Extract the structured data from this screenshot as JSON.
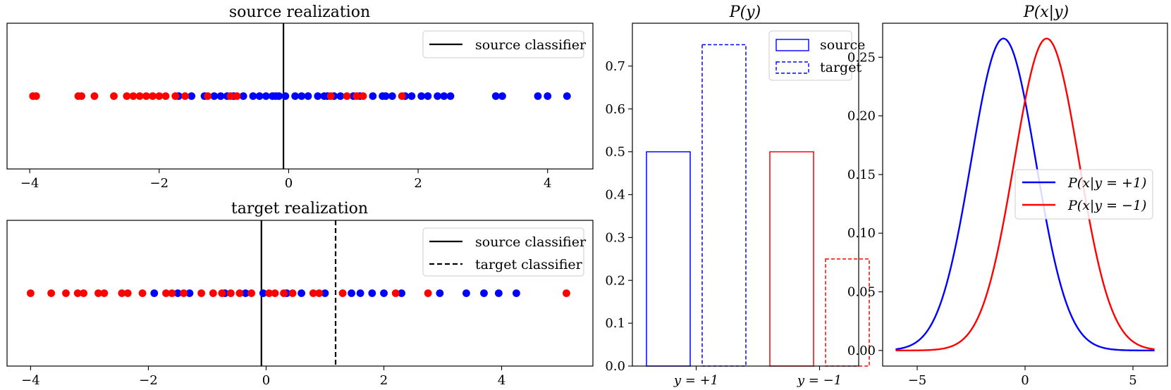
{
  "chart_data": [
    {
      "id": "source",
      "type": "scatter",
      "title": "source realization",
      "xlim": [
        -4.35,
        4.7
      ],
      "xticks": [
        -4,
        -2,
        0,
        2,
        4
      ],
      "xtick_labels": [
        "−4",
        "−2",
        "0",
        "2",
        "4"
      ],
      "legend": {
        "placement": "top-right",
        "entries": [
          {
            "label": "source classifier",
            "style": "solid"
          }
        ]
      },
      "classifiers": [
        {
          "name": "source classifier",
          "x": -0.08,
          "style": "solid"
        }
      ],
      "series": [
        {
          "name": "y = +1",
          "color": "#0000ff",
          "x": [
            -1.7,
            -1.5,
            -1.3,
            -1.15,
            -1.05,
            -0.95,
            -0.85,
            -0.7,
            -0.55,
            -0.45,
            -0.35,
            -0.25,
            -0.2,
            -0.15,
            -0.05,
            0.1,
            0.2,
            0.3,
            0.45,
            0.55,
            0.6,
            0.7,
            0.8,
            1.0,
            1.1,
            1.3,
            1.45,
            1.5,
            1.6,
            1.8,
            1.9,
            2.05,
            2.15,
            2.3,
            2.4,
            2.5,
            3.2,
            3.3,
            3.85,
            4.0,
            4.3
          ]
        },
        {
          "name": "y = −1",
          "color": "#ff0000",
          "x": [
            -3.95,
            -3.9,
            -3.25,
            -3.2,
            -3.0,
            -2.7,
            -2.5,
            -2.4,
            -2.3,
            -2.2,
            -2.1,
            -2.0,
            -1.9,
            -1.75,
            -1.6,
            -1.25,
            -0.9,
            -0.8,
            0.65,
            0.9,
            1.05,
            1.15,
            1.75
          ]
        }
      ]
    },
    {
      "id": "target",
      "type": "scatter",
      "title": "target realization",
      "xlim": [
        -4.4,
        5.55
      ],
      "xticks": [
        -4,
        -2,
        0,
        2,
        4
      ],
      "xtick_labels": [
        "−4",
        "−2",
        "0",
        "2",
        "4"
      ],
      "legend": {
        "placement": "top-right",
        "entries": [
          {
            "label": "source classifier",
            "style": "solid"
          },
          {
            "label": "target classifier",
            "style": "dashed"
          }
        ]
      },
      "classifiers": [
        {
          "name": "source classifier",
          "x": -0.08,
          "style": "solid"
        },
        {
          "name": "target classifier",
          "x": 1.18,
          "style": "dashed"
        }
      ],
      "series": [
        {
          "name": "y = +1",
          "color": "#0000ff",
          "x": [
            -1.9,
            -1.5,
            -1.3,
            -0.7,
            -0.35,
            -0.05,
            0.35,
            0.6,
            1.0,
            1.45,
            1.6,
            1.8,
            2.0,
            2.3,
            2.95,
            3.4,
            3.7,
            3.95,
            4.25
          ]
        },
        {
          "name": "y = −1",
          "color": "#ff0000",
          "x": [
            -4.0,
            -3.65,
            -3.4,
            -3.2,
            -3.1,
            -2.85,
            -2.75,
            -2.45,
            -2.35,
            -2.1,
            -1.7,
            -1.6,
            -1.4,
            -1.1,
            -0.9,
            -0.75,
            -0.6,
            -0.45,
            -0.25,
            0.05,
            0.15,
            0.3,
            0.45,
            0.8,
            0.9,
            1.3,
            2.2,
            2.75,
            5.1
          ]
        }
      ]
    },
    {
      "id": "prior",
      "type": "bar",
      "title": "P(y)",
      "categories": [
        "y = +1",
        "y = −1"
      ],
      "ylim": [
        0,
        0.8
      ],
      "yticks": [
        0.0,
        0.1,
        0.2,
        0.3,
        0.4,
        0.5,
        0.6,
        0.7
      ],
      "ytick_labels": [
        "0.0",
        "0.1",
        "0.2",
        "0.3",
        "0.4",
        "0.5",
        "0.6",
        "0.7"
      ],
      "legend": {
        "placement": "top-right",
        "entries": [
          {
            "label": "source",
            "style": "solid"
          },
          {
            "label": "target",
            "style": "dashed"
          }
        ]
      },
      "series": [
        {
          "name": "source",
          "style": "solid",
          "values": [
            0.5,
            0.5
          ]
        },
        {
          "name": "target",
          "style": "dashed",
          "values": [
            0.75,
            0.25
          ]
        }
      ],
      "colors": [
        "#0000ff",
        "#ff0000"
      ]
    },
    {
      "id": "likelihood",
      "type": "line",
      "title": "P(x|y)",
      "xlim": [
        -6.6,
        6.6
      ],
      "ylim": [
        -0.0133,
        0.279
      ],
      "xticks": [
        -5,
        0,
        5
      ],
      "xtick_labels": [
        "−5",
        "0",
        "5"
      ],
      "yticks": [
        0.0,
        0.05,
        0.1,
        0.15,
        0.2,
        0.25
      ],
      "ytick_labels": [
        "0.00",
        "0.05",
        "0.10",
        "0.15",
        "0.20",
        "0.25"
      ],
      "legend": {
        "placement": "center-right",
        "entries": [
          {
            "label": "P(x|y = +1)",
            "color": "#0000ff"
          },
          {
            "label": "P(x|y = −1)",
            "color": "#ff0000"
          }
        ]
      },
      "series": [
        {
          "name": "P(x|y = +1)",
          "color": "#0000ff",
          "distribution": "normal",
          "mean": -1,
          "std": 1.5,
          "x_range": [
            -6,
            6
          ]
        },
        {
          "name": "P(x|y = −1)",
          "color": "#ff0000",
          "distribution": "normal",
          "mean": 1,
          "std": 1.5,
          "x_range": [
            -6,
            6
          ]
        }
      ]
    }
  ]
}
